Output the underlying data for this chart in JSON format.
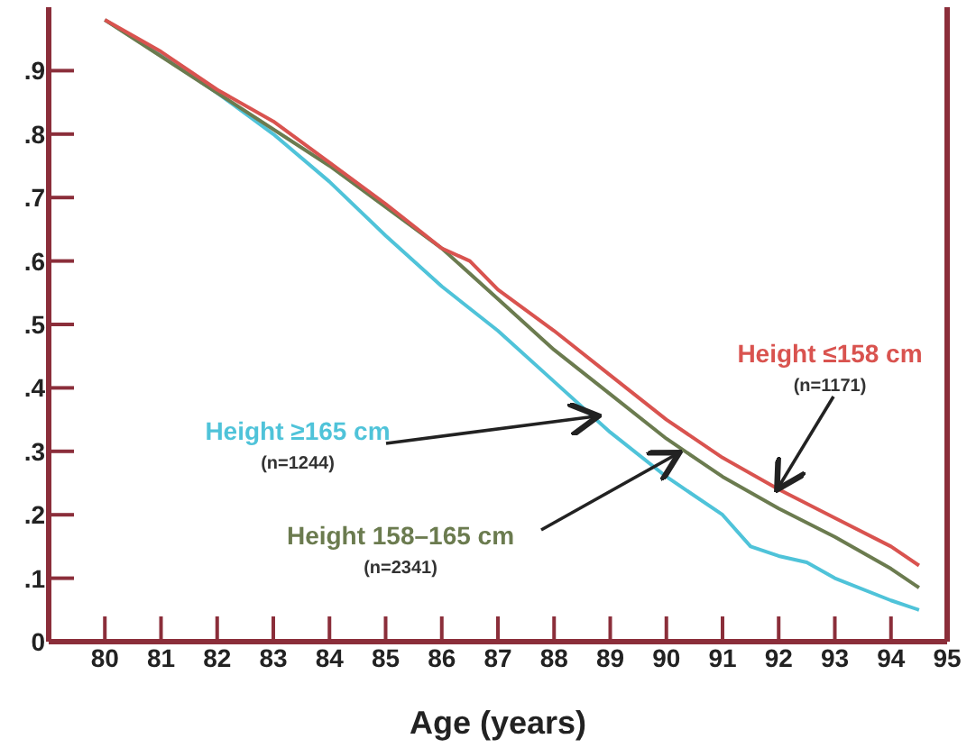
{
  "chart_data": {
    "type": "line",
    "xlabel": "Age (years)",
    "xlim": [
      79,
      95
    ],
    "xticks": [
      80,
      81,
      82,
      83,
      84,
      85,
      86,
      87,
      88,
      89,
      90,
      91,
      92,
      93,
      94,
      95
    ],
    "ylim": [
      0,
      1
    ],
    "yticks": [
      0,
      {
        "value": 0.1,
        "label": ".1"
      },
      {
        "value": 0.2,
        "label": ".2"
      },
      {
        "value": 0.3,
        "label": ".3"
      },
      {
        "value": 0.4,
        "label": ".4"
      },
      {
        "value": 0.5,
        "label": ".5"
      },
      {
        "value": 0.6,
        "label": ".6"
      },
      {
        "value": 0.7,
        "label": ".7"
      },
      {
        "value": 0.8,
        "label": ".8"
      },
      {
        "value": 0.9,
        "label": ".9"
      }
    ],
    "marker": "none",
    "line_style": "solid",
    "series": [
      {
        "name": "Height ≥165 cm",
        "color": "#4fc3d9",
        "x": [
          80,
          81,
          82,
          83,
          84,
          85,
          86,
          87,
          88,
          89,
          90,
          91,
          91.5,
          92,
          92.5,
          93,
          94,
          94.5
        ],
        "values": [
          0.98,
          0.925,
          0.865,
          0.8,
          0.725,
          0.64,
          0.56,
          0.49,
          0.41,
          0.33,
          0.26,
          0.2,
          0.15,
          0.135,
          0.125,
          0.1,
          0.065,
          0.05
        ]
      },
      {
        "name": "Height 158–165 cm",
        "color": "#6b7b4f",
        "x": [
          80,
          82,
          84,
          86,
          87,
          88,
          89,
          90,
          91,
          92,
          93,
          94,
          94.5
        ],
        "values": [
          0.98,
          0.865,
          0.75,
          0.62,
          0.54,
          0.46,
          0.39,
          0.32,
          0.26,
          0.21,
          0.165,
          0.115,
          0.085
        ]
      },
      {
        "name": "Height ≤158 cm",
        "color": "#d9534f",
        "x": [
          80,
          81,
          82,
          83,
          84,
          85,
          86,
          86.5,
          87,
          88,
          89,
          90,
          91,
          92,
          93,
          94,
          94.5
        ],
        "values": [
          0.98,
          0.93,
          0.87,
          0.82,
          0.755,
          0.69,
          0.62,
          0.6,
          0.555,
          0.49,
          0.42,
          0.35,
          0.29,
          0.24,
          0.195,
          0.15,
          0.12
        ]
      }
    ],
    "annotations": [
      "(n=1244)",
      "(n=2341)",
      {
        "text": "(n=1171)",
        "x": 92,
        "y": 0.244
      }
    ]
  }
}
